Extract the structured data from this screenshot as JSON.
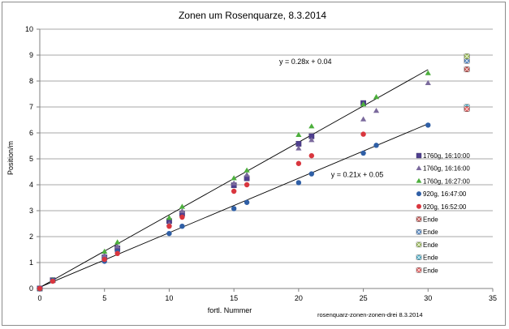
{
  "chart_data": {
    "type": "scatter",
    "title": "Zonen um Rosenquarze,  8.3.2014",
    "xlabel": "fortl. Nummer",
    "ylabel": "Position/m",
    "xlim": [
      0,
      35
    ],
    "ylim": [
      0,
      10
    ],
    "xticks": [
      0,
      5,
      10,
      15,
      20,
      25,
      30,
      35
    ],
    "yticks": [
      0,
      1,
      2,
      3,
      4,
      5,
      6,
      7,
      8,
      9,
      10
    ],
    "grid": "horizontal",
    "legend_position": "right",
    "footer": "rosenquarz-zonen-zonen-drei  8.3.2014",
    "series": [
      {
        "name": "1760g, 16:10:00",
        "marker": "square",
        "color": "#4f3f8f",
        "x": [
          0,
          1,
          5,
          6,
          10,
          11,
          15,
          16,
          20,
          21,
          25
        ],
        "y": [
          0.0,
          0.32,
          1.2,
          1.55,
          2.6,
          2.88,
          3.98,
          4.25,
          5.58,
          5.87,
          7.15
        ]
      },
      {
        "name": "1760g, 16:16:00",
        "marker": "triangle",
        "color": "#7b6a9d",
        "x": [
          0,
          1,
          5,
          6,
          10,
          11,
          15,
          16,
          20,
          21,
          25,
          26,
          30
        ],
        "y": [
          0.0,
          0.32,
          1.28,
          1.62,
          2.48,
          2.98,
          4.05,
          4.38,
          5.4,
          5.72,
          6.52,
          6.85,
          7.92
        ]
      },
      {
        "name": "1760g, 16:27:00",
        "marker": "triangle",
        "color": "#4caf3c",
        "x": [
          0,
          1,
          5,
          6,
          10,
          11,
          15,
          16,
          20,
          21,
          25,
          26,
          30
        ],
        "y": [
          0.0,
          0.33,
          1.42,
          1.78,
          2.72,
          3.15,
          4.25,
          4.55,
          5.92,
          6.25,
          7.1,
          7.38,
          8.3
        ]
      },
      {
        "name": "920g, 16:47:00",
        "marker": "circle",
        "color": "#2f5fa6",
        "x": [
          0,
          1,
          5,
          6,
          10,
          11,
          15,
          16,
          20,
          21,
          25,
          26,
          30
        ],
        "y": [
          0.0,
          0.3,
          1.05,
          1.42,
          2.12,
          2.4,
          3.08,
          3.32,
          4.08,
          4.42,
          5.22,
          5.52,
          6.3
        ]
      },
      {
        "name": "920g, 16:52:00",
        "marker": "circle",
        "color": "#d9363e",
        "x": [
          0,
          1,
          5,
          6,
          10,
          11,
          15,
          16,
          20,
          21,
          25
        ],
        "y": [
          0.0,
          0.28,
          1.12,
          1.35,
          2.4,
          2.75,
          3.75,
          4.0,
          4.82,
          5.12,
          5.95
        ]
      },
      {
        "name": "Ende",
        "marker": "square-x",
        "color": "#c0504d",
        "x": [
          33
        ],
        "y": [
          8.45
        ]
      },
      {
        "name": "Ende",
        "marker": "square-x",
        "color": "#4f81bd",
        "x": [
          33
        ],
        "y": [
          8.78
        ]
      },
      {
        "name": "Ende",
        "marker": "square-x",
        "color": "#9bbb59",
        "x": [
          33
        ],
        "y": [
          8.95
        ]
      },
      {
        "name": "Ende",
        "marker": "square-x",
        "color": "#4bacc6",
        "x": [
          33
        ],
        "y": [
          7.0
        ]
      },
      {
        "name": "Ende",
        "marker": "square-x",
        "color": "#e05a5a",
        "x": [
          33
        ],
        "y": [
          6.92
        ]
      }
    ],
    "trendlines": [
      {
        "equation": "y = 0.28x + 0.04",
        "slope": 0.28,
        "intercept": 0.04,
        "x_range": [
          0,
          30
        ],
        "label_x": 18.5,
        "label_y": 8.65
      },
      {
        "equation": "y = 0.21x + 0.05",
        "slope": 0.21,
        "intercept": 0.05,
        "x_range": [
          0,
          30
        ],
        "label_x": 22.5,
        "label_y": 4.3
      }
    ]
  }
}
